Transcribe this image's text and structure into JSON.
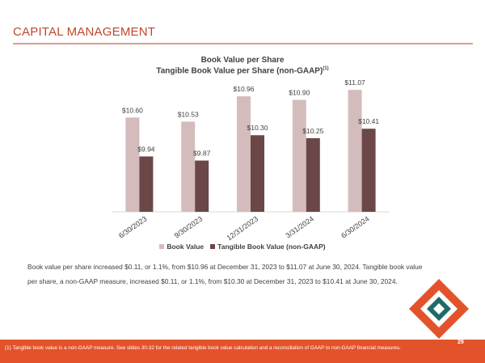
{
  "header": {
    "title": "CAPITAL MANAGEMENT"
  },
  "chart_data": {
    "type": "bar",
    "title": "Book Value per Share",
    "subtitle": "Tangible Book Value per Share (non-GAAP)",
    "subtitle_superscript": "(1)",
    "categories": [
      "6/30/2023",
      "9/30/2023",
      "12/31/2023",
      "3/31/2024",
      "6/30/2024"
    ],
    "series": [
      {
        "name": "Book Value",
        "values": [
          10.6,
          10.53,
          10.96,
          10.9,
          11.07
        ],
        "labels": [
          "$10.60",
          "$10.53",
          "$10.96",
          "$10.90",
          "$11.07"
        ],
        "color": "#d5bcbc"
      },
      {
        "name": "Tangible Book Value (non-GAAP)",
        "values": [
          9.94,
          9.87,
          10.3,
          10.25,
          10.41
        ],
        "labels": [
          "$9.94",
          "$9.87",
          "$10.30",
          "$10.25",
          "$10.41"
        ],
        "color": "#6b4747"
      }
    ],
    "ylim": [
      9.0,
      11.25
    ],
    "grid": false,
    "legend": "bottom"
  },
  "body": {
    "text": "Book value per share increased $0.11, or 1.1%, from $10.96 at December 31, 2023 to $11.07 at June 30, 2024. Tangible book value per share, a non-GAAP measure, increased $0.11, or 1.1%, from $10.30 at December 31, 2023 to $10.41 at June 30, 2024."
  },
  "footer": {
    "footnote": "(1) Tangible book value is a non-GAAP measure.  See slides 30-32 for the related tangible book value calculation and a reconciliation of GAAP to non-GAAP financial measures.",
    "page_number": "29"
  },
  "logo": {
    "icon": "diamond-logo-icon",
    "colors": [
      "#e3532b",
      "#1f6a6a"
    ]
  }
}
